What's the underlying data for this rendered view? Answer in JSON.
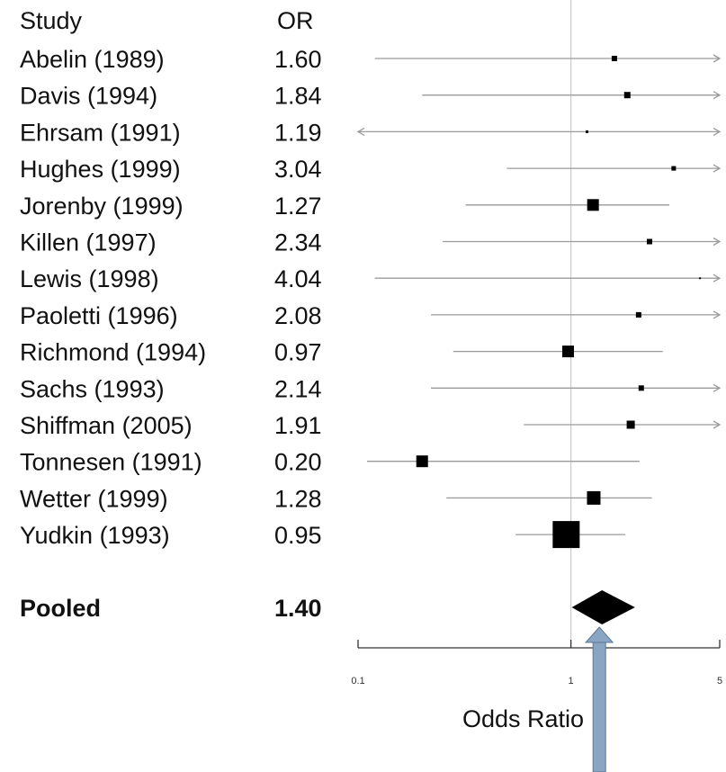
{
  "chart_data": {
    "type": "forest",
    "columns": {
      "study": "Study",
      "effect": "OR"
    },
    "studies": [
      {
        "label": "Abelin (1989)",
        "or_text": "1.60",
        "or": 1.6,
        "ci_low": 0.12,
        "ci_high": 5.0,
        "ci_high_arrow": true,
        "ci_low_arrow": false,
        "weight_size": 6
      },
      {
        "label": "Davis (1994)",
        "or_text": "1.84",
        "or": 1.84,
        "ci_low": 0.2,
        "ci_high": 5.0,
        "ci_high_arrow": true,
        "ci_low_arrow": false,
        "weight_size": 7
      },
      {
        "label": "Ehrsam (1991)",
        "or_text": "1.19",
        "or": 1.19,
        "ci_low": 0.1,
        "ci_high": 5.0,
        "ci_high_arrow": true,
        "ci_low_arrow": true,
        "weight_size": 3
      },
      {
        "label": "Hughes (1999)",
        "or_text": "3.04",
        "or": 3.04,
        "ci_low": 0.5,
        "ci_high": 5.0,
        "ci_high_arrow": true,
        "ci_low_arrow": false,
        "weight_size": 5
      },
      {
        "label": "Jorenby (1999)",
        "or_text": "1.27",
        "or": 1.27,
        "ci_low": 0.32,
        "ci_high": 2.9,
        "ci_high_arrow": false,
        "ci_low_arrow": false,
        "weight_size": 13
      },
      {
        "label": "Killen (1997)",
        "or_text": "2.34",
        "or": 2.34,
        "ci_low": 0.25,
        "ci_high": 5.0,
        "ci_high_arrow": true,
        "ci_low_arrow": false,
        "weight_size": 6
      },
      {
        "label": "Lewis (1998)",
        "or_text": "4.04",
        "or": 4.04,
        "ci_low": 0.12,
        "ci_high": 5.0,
        "ci_high_arrow": true,
        "ci_low_arrow": false,
        "weight_size": 2
      },
      {
        "label": "Paoletti (1996)",
        "or_text": "2.08",
        "or": 2.08,
        "ci_low": 0.22,
        "ci_high": 5.0,
        "ci_high_arrow": true,
        "ci_low_arrow": false,
        "weight_size": 6
      },
      {
        "label": "Richmond (1994)",
        "or_text": "0.97",
        "or": 0.97,
        "ci_low": 0.28,
        "ci_high": 2.7,
        "ci_high_arrow": false,
        "ci_low_arrow": false,
        "weight_size": 13
      },
      {
        "label": "Sachs (1993)",
        "or_text": "2.14",
        "or": 2.14,
        "ci_low": 0.22,
        "ci_high": 5.0,
        "ci_high_arrow": true,
        "ci_low_arrow": false,
        "weight_size": 6
      },
      {
        "label": "Shiffman (2005)",
        "or_text": "1.91",
        "or": 1.91,
        "ci_low": 0.6,
        "ci_high": 5.0,
        "ci_high_arrow": true,
        "ci_low_arrow": false,
        "weight_size": 9
      },
      {
        "label": "Tonnesen (1991)",
        "or_text": "0.20",
        "or": 0.2,
        "ci_low": 0.1,
        "ci_high": 2.1,
        "ci_high_arrow": false,
        "ci_low_arrow": false,
        "weight_size": 13
      },
      {
        "label": "Wetter (1999)",
        "or_text": "1.28",
        "or": 1.28,
        "ci_low": 0.26,
        "ci_high": 2.4,
        "ci_high_arrow": false,
        "ci_low_arrow": false,
        "weight_size": 15
      },
      {
        "label": "Yudkin (1993)",
        "or_text": "0.95",
        "or": 0.95,
        "ci_low": 0.55,
        "ci_high": 1.8,
        "ci_high_arrow": false,
        "ci_low_arrow": false,
        "weight_size": 30
      }
    ],
    "pooled": {
      "label": "Pooled",
      "or_text": "1.40",
      "or": 1.4,
      "ci_low": 1.0,
      "ci_high": 2.0
    },
    "x_axis": {
      "label": "Odds Ratio",
      "scale": "log",
      "ticks": [
        {
          "value": 0.1,
          "label": "0.1"
        },
        {
          "value": 1,
          "label": "1"
        },
        {
          "value": 5,
          "label": "5"
        }
      ],
      "range": [
        0.1,
        5
      ]
    },
    "reference_line": 1,
    "colors": {
      "marker": "#000000",
      "ci_line": "#9a9a9a",
      "reference_line": "#cccccc",
      "annotation_arrow": "#8aa4c4",
      "annotation_arrow_outline": "#5c7696"
    }
  }
}
